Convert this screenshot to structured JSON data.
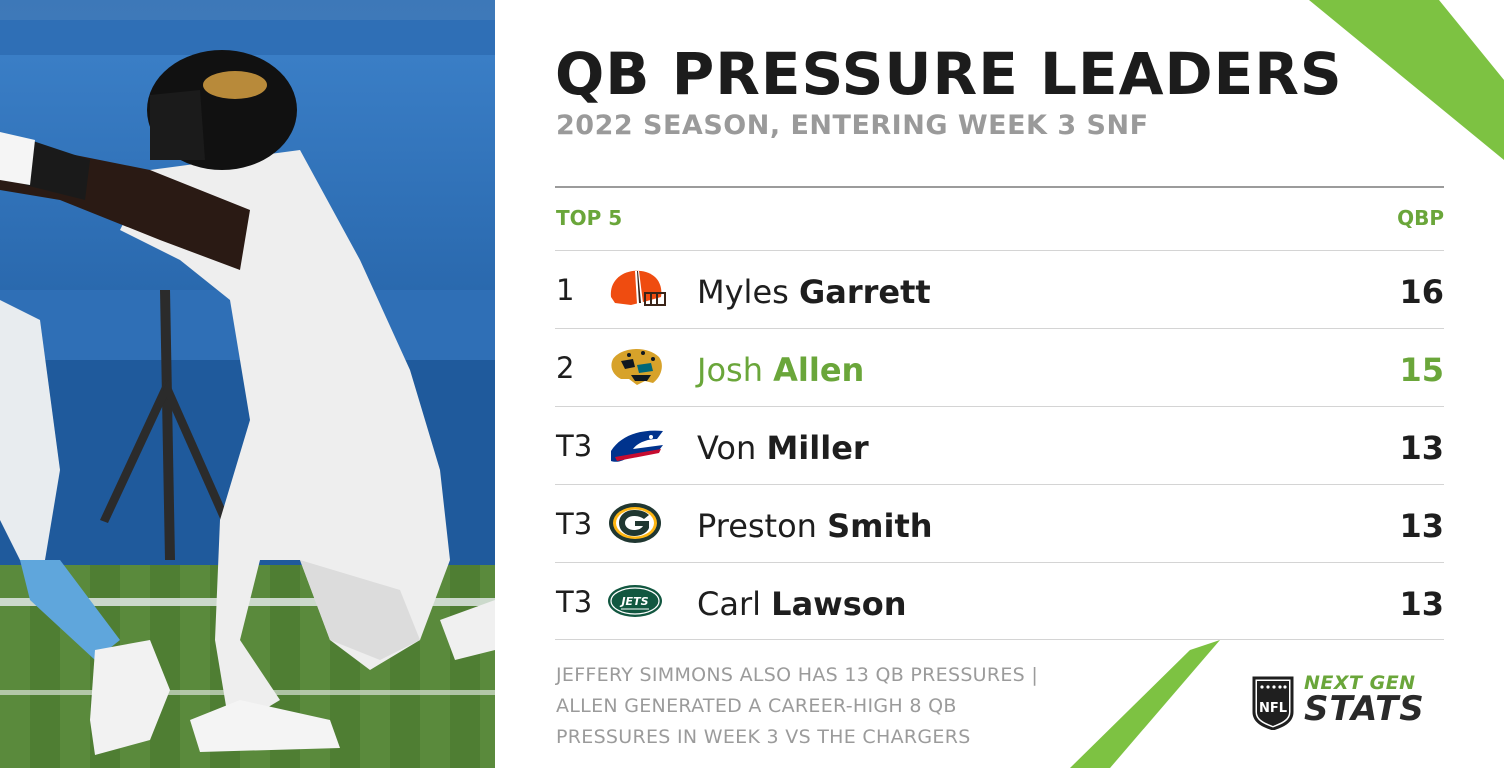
{
  "graphic": {
    "title": "QB PRESSURE LEADERS",
    "subtitle": "2022 SEASON, ENTERING WEEK 3 SNF"
  },
  "table": {
    "header_left": "TOP 5",
    "header_right": "QBP",
    "rows": [
      {
        "rank": "1",
        "team_icon": "browns-helmet-icon",
        "first": "Myles",
        "last": "Garrett",
        "qbp": "16"
      },
      {
        "rank": "2",
        "team_icon": "jaguars-logo-icon",
        "first": "Josh",
        "last": "Allen",
        "qbp": "15",
        "highlight": true
      },
      {
        "rank": "T3",
        "team_icon": "bills-logo-icon",
        "first": "Von",
        "last": "Miller",
        "qbp": "13"
      },
      {
        "rank": "T3",
        "team_icon": "packers-logo-icon",
        "first": "Preston",
        "last": "Smith",
        "qbp": "13"
      },
      {
        "rank": "T3",
        "team_icon": "jets-logo-icon",
        "first": "Carl",
        "last": "Lawson",
        "qbp": "13",
        "logo_text": "JETS"
      }
    ]
  },
  "footnote": {
    "line1": "JEFFERY SIMMONS ALSO HAS 13 QB PRESSURES |",
    "line2": "ALLEN GENERATED A CAREER-HIGH 8 QB",
    "line3": "PRESSURES IN WEEK 3 VS THE CHARGERS"
  },
  "branding": {
    "league_logo": "nfl-shield-icon",
    "league_text": "NFL",
    "brand_top": "NEXT GEN",
    "brand_bottom": "STATS"
  },
  "colors": {
    "accent_green": "#6aa63a",
    "text_dark": "#1c1c1c",
    "text_gray": "#9b9b9b"
  }
}
